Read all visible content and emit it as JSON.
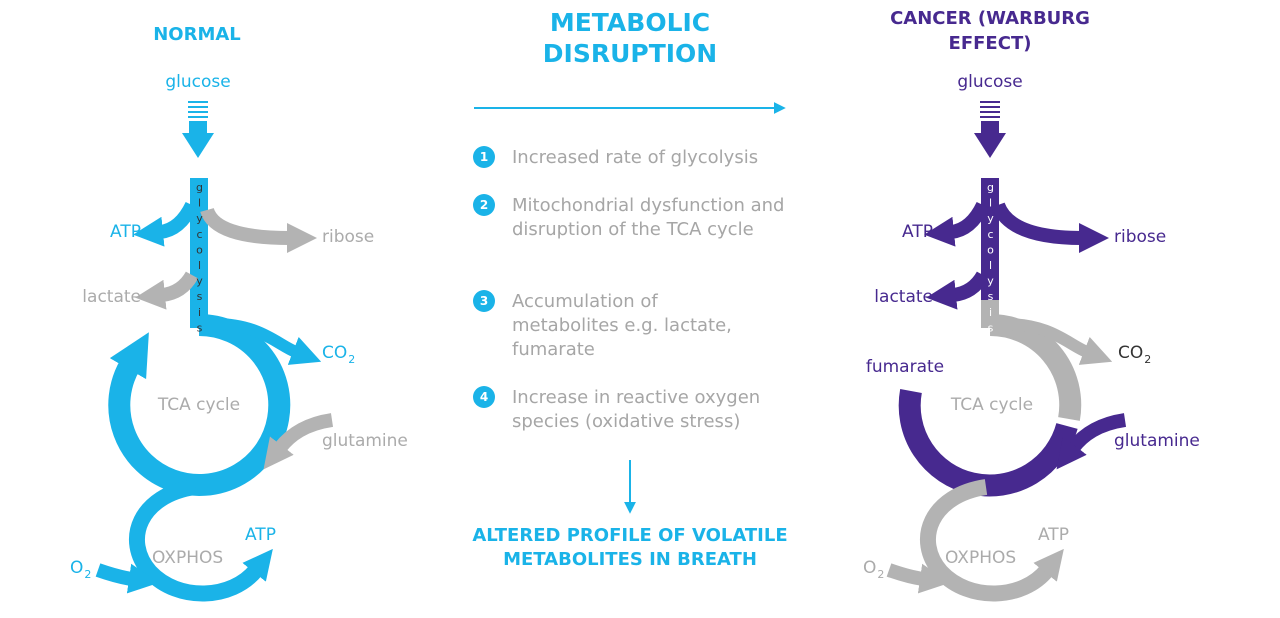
{
  "middle": {
    "title": "METABOLIC DISRUPTION",
    "steps": [
      {
        "number": "1",
        "text": "Increased rate of glycolysis"
      },
      {
        "number": "2",
        "text": "Mitochondrial dysfunction and disruption of the TCA cycle"
      },
      {
        "number": "3",
        "text": "Accumulation of metabolites e.g. lactate, fumarate"
      },
      {
        "number": "4",
        "text": "Increase in reactive oxygen species (oxidative stress)"
      }
    ],
    "outcome": "ALTERED PROFILE OF VOLATILE METABOLITES IN BREATH"
  },
  "normal": {
    "title": "NORMAL",
    "glucose": "glucose",
    "glycolysis": "glycolysis",
    "atp": "ATP",
    "ribose": "ribose",
    "lactate": "lactate",
    "co2": {
      "text": "CO",
      "sub": "2"
    },
    "tca": "TCA cycle",
    "glutamine": "glutamine",
    "o2": {
      "text": "O",
      "sub": "2"
    },
    "oxphos": "OXPHOS",
    "atp_oxphos": "ATP"
  },
  "cancer": {
    "title": "CANCER (WARBURG EFFECT)",
    "glucose": "glucose",
    "glycolysis": "glycolysis",
    "atp": "ATP",
    "ribose": "ribose",
    "lactate": "lactate",
    "fumarate": "fumarate",
    "co2": {
      "text": "CO",
      "sub": "2"
    },
    "tca": "TCA cycle",
    "glutamine": "glutamine",
    "o2": {
      "text": "O",
      "sub": "2"
    },
    "oxphos": "OXPHOS",
    "atp_oxphos": "ATP"
  }
}
